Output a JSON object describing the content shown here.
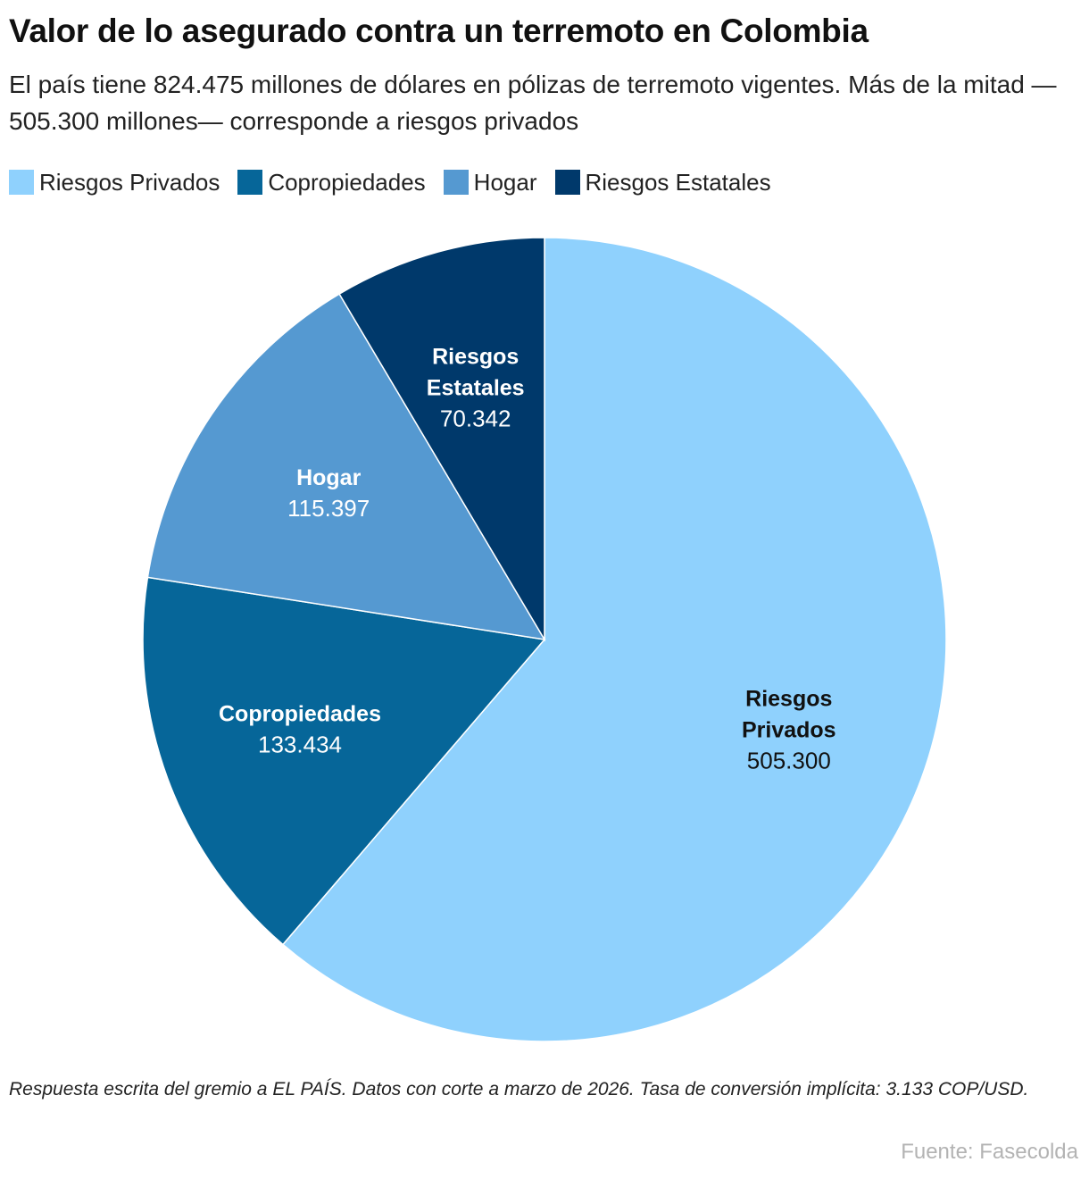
{
  "header": {
    "title": "Valor de lo asegurado contra un terremoto en Colombia",
    "subtitle": "El país tiene 824.475 millones de dólares en pólizas de terremoto vigentes. Más de la mitad —505.300 millones— corresponde a riesgos privados"
  },
  "legend": {
    "items": [
      {
        "label": "Riesgos Privados",
        "color": "#8fd1fd"
      },
      {
        "label": "Copropiedades",
        "color": "#066699"
      },
      {
        "label": "Hogar",
        "color": "#5599d1"
      },
      {
        "label": "Riesgos Estatales",
        "color": "#00396b"
      }
    ]
  },
  "chart_data": {
    "type": "pie",
    "start": "12 o'clock",
    "direction": "clockwise",
    "slices": [
      {
        "label_lines": [
          "Riesgos",
          "Privados"
        ],
        "value": 505300,
        "value_label": "505.300",
        "color": "#8fd1fd",
        "text_color": "#111111"
      },
      {
        "label_lines": [
          "Copropiedades"
        ],
        "value": 133434,
        "value_label": "133.434",
        "color": "#066699",
        "text_color": "#ffffff"
      },
      {
        "label_lines": [
          "Hogar"
        ],
        "value": 115397,
        "value_label": "115.397",
        "color": "#5599d1",
        "text_color": "#ffffff"
      },
      {
        "label_lines": [
          "Riesgos",
          "Estatales"
        ],
        "value": 70342,
        "value_label": "70.342",
        "color": "#00396b",
        "text_color": "#ffffff"
      }
    ]
  },
  "footer": {
    "note": "Respuesta escrita del gremio a EL PAÍS. Datos con corte a marzo de 2026. Tasa de conversión implícita: 3.133 COP/USD.",
    "source": "Fuente: Fasecolda"
  }
}
